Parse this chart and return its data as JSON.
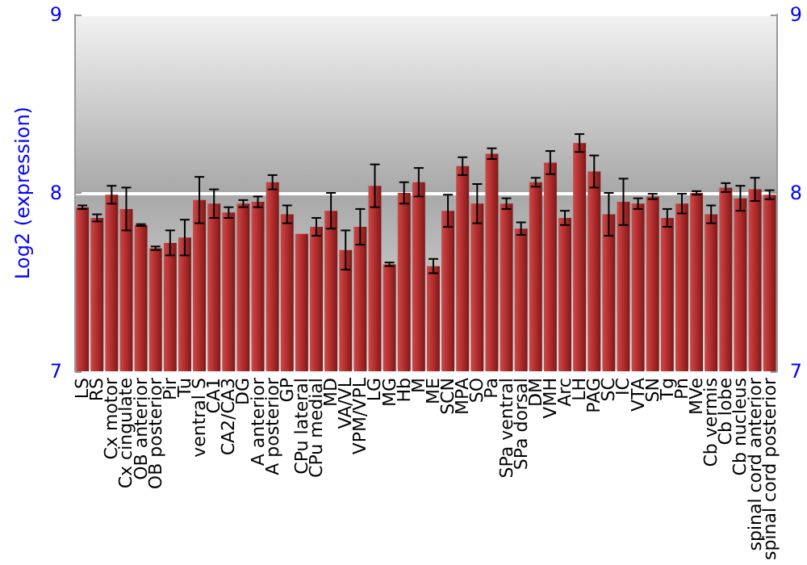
{
  "chart_data": {
    "type": "bar",
    "ylabel": "Log2 (expression)",
    "categories": [
      "LS",
      "RS",
      "Cx motor",
      "Cx cingulate",
      "OB anterior",
      "OB posterior",
      "Pir",
      "Tu",
      "ventral S",
      "CA1",
      "CA2/CA3",
      "DG",
      "A anterior",
      "A posterior",
      "GP",
      "CPu lateral",
      "CPu medial",
      "MD",
      "VA/VL",
      "VPM/VPL",
      "LG",
      "MG",
      "Hb",
      "M",
      "ME",
      "SCN",
      "MPA",
      "SO",
      "Pa",
      "SPa ventral",
      "SPa dorsal",
      "DM",
      "VMH",
      "Arc",
      "LH",
      "PAG",
      "SC",
      "IC",
      "VTA",
      "SN",
      "Tg",
      "Pn",
      "MVe",
      "Cb vermis",
      "Cb lobe",
      "Cb nucleus",
      "spinal cord anterior",
      "spinal cord posterior"
    ],
    "values": [
      7.92,
      7.86,
      7.99,
      7.91,
      7.82,
      7.69,
      7.72,
      7.75,
      7.96,
      7.94,
      7.89,
      7.94,
      7.95,
      8.06,
      7.88,
      7.77,
      7.81,
      7.9,
      7.68,
      7.81,
      8.04,
      7.6,
      8.0,
      8.06,
      7.59,
      7.9,
      8.15,
      7.94,
      8.22,
      7.94,
      7.8,
      8.06,
      8.17,
      7.86,
      8.28,
      8.12,
      7.88,
      7.95,
      7.94,
      7.98,
      7.86,
      7.94,
      8.0,
      7.88,
      8.03,
      7.97,
      8.02,
      7.99
    ],
    "errors": [
      0.01,
      0.02,
      0.05,
      0.12,
      0.005,
      0.01,
      0.07,
      0.1,
      0.13,
      0.08,
      0.03,
      0.02,
      0.03,
      0.04,
      0.05,
      null,
      0.05,
      0.1,
      0.11,
      0.1,
      0.12,
      0.01,
      0.06,
      0.08,
      0.04,
      0.09,
      0.05,
      0.11,
      0.03,
      0.03,
      0.035,
      0.025,
      0.065,
      0.04,
      0.05,
      0.09,
      0.12,
      0.13,
      0.03,
      0.015,
      0.05,
      0.055,
      0.01,
      0.05,
      0.025,
      0.07,
      0.065,
      0.025
    ],
    "color": "#b22c2c",
    "ylim": [
      7,
      9
    ],
    "yticks": [
      7,
      8,
      9
    ],
    "y2lim": [
      7,
      9
    ],
    "y2ticks": [
      7,
      8,
      9
    ],
    "grid": "y"
  }
}
